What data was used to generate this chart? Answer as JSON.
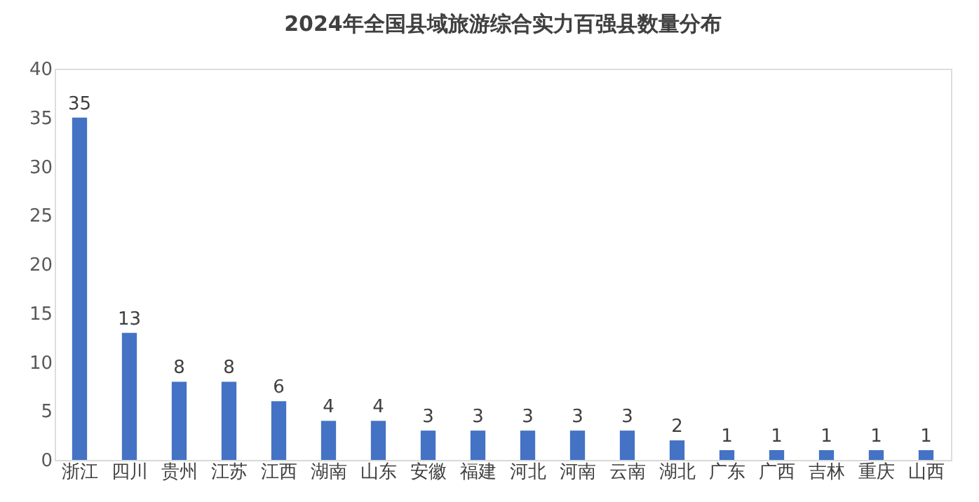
{
  "chart_data": {
    "type": "bar",
    "title": "2024年全国县域旅游综合实力百强县数量分布",
    "categories": [
      "浙江",
      "四川",
      "贵州",
      "江苏",
      "江西",
      "湖南",
      "山东",
      "安徽",
      "福建",
      "河北",
      "河南",
      "云南",
      "湖北",
      "广东",
      "广西",
      "吉林",
      "重庆",
      "山西"
    ],
    "values": [
      35,
      13,
      8,
      8,
      6,
      4,
      4,
      3,
      3,
      3,
      3,
      3,
      2,
      1,
      1,
      1,
      1,
      1
    ],
    "color": "#4472c4",
    "ylim": [
      0,
      40
    ],
    "yticks": [
      0,
      5,
      10,
      15,
      20,
      25,
      30,
      35,
      40
    ],
    "grid": false,
    "data_labels": true
  }
}
